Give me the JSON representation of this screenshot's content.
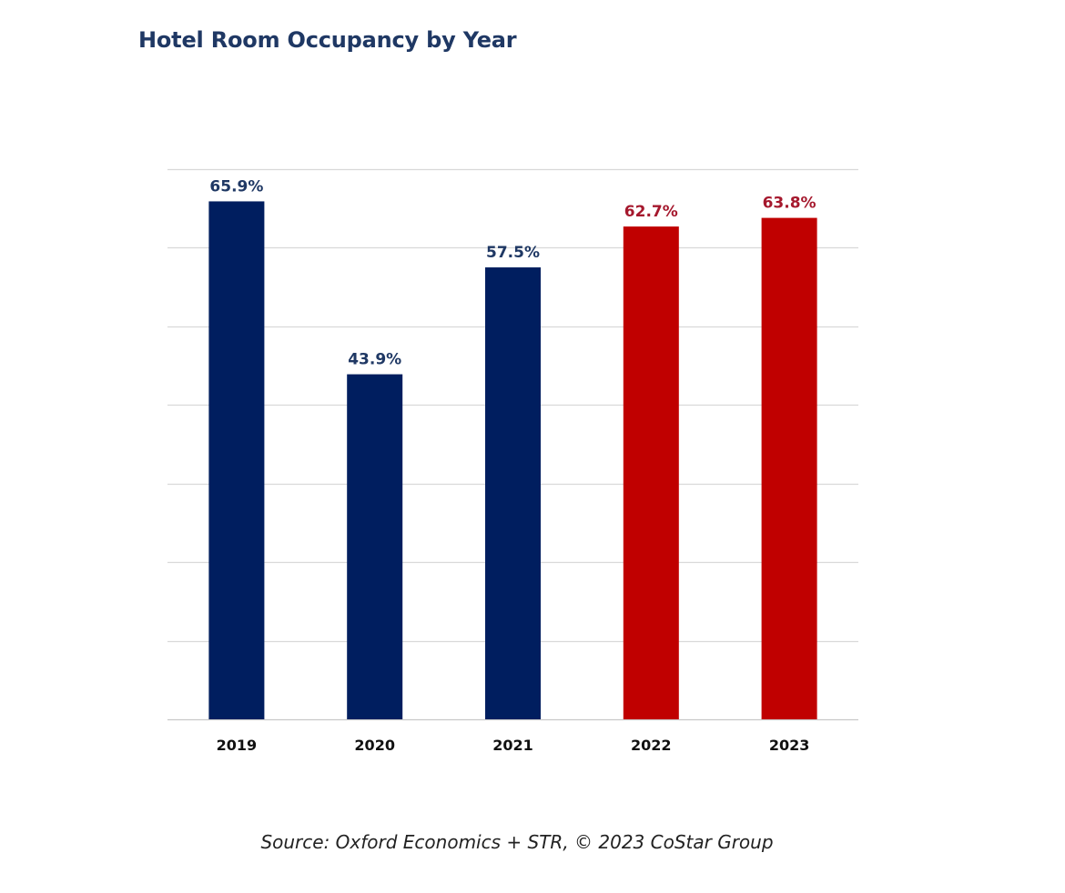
{
  "chart_data": {
    "type": "bar",
    "title": "Hotel Room Occupancy by Year",
    "categories": [
      "2019",
      "2020",
      "2021",
      "2022",
      "2023"
    ],
    "values": [
      65.9,
      43.9,
      57.5,
      62.7,
      63.8
    ],
    "data_labels": [
      "65.9%",
      "43.9%",
      "57.5%",
      "62.7%",
      "63.8%"
    ],
    "colors": [
      "#001e5f",
      "#001e5f",
      "#001e5f",
      "#c00000",
      "#c00000"
    ],
    "label_colors": [
      "#1f3864",
      "#1f3864",
      "#1f3864",
      "#a5182d",
      "#a5182d"
    ],
    "xlabel": "",
    "ylabel": "",
    "ylim": [
      0,
      70
    ],
    "gridlines": true,
    "legend": false
  },
  "source": "Source: Oxford Economics + STR, © 2023 CoStar Group"
}
